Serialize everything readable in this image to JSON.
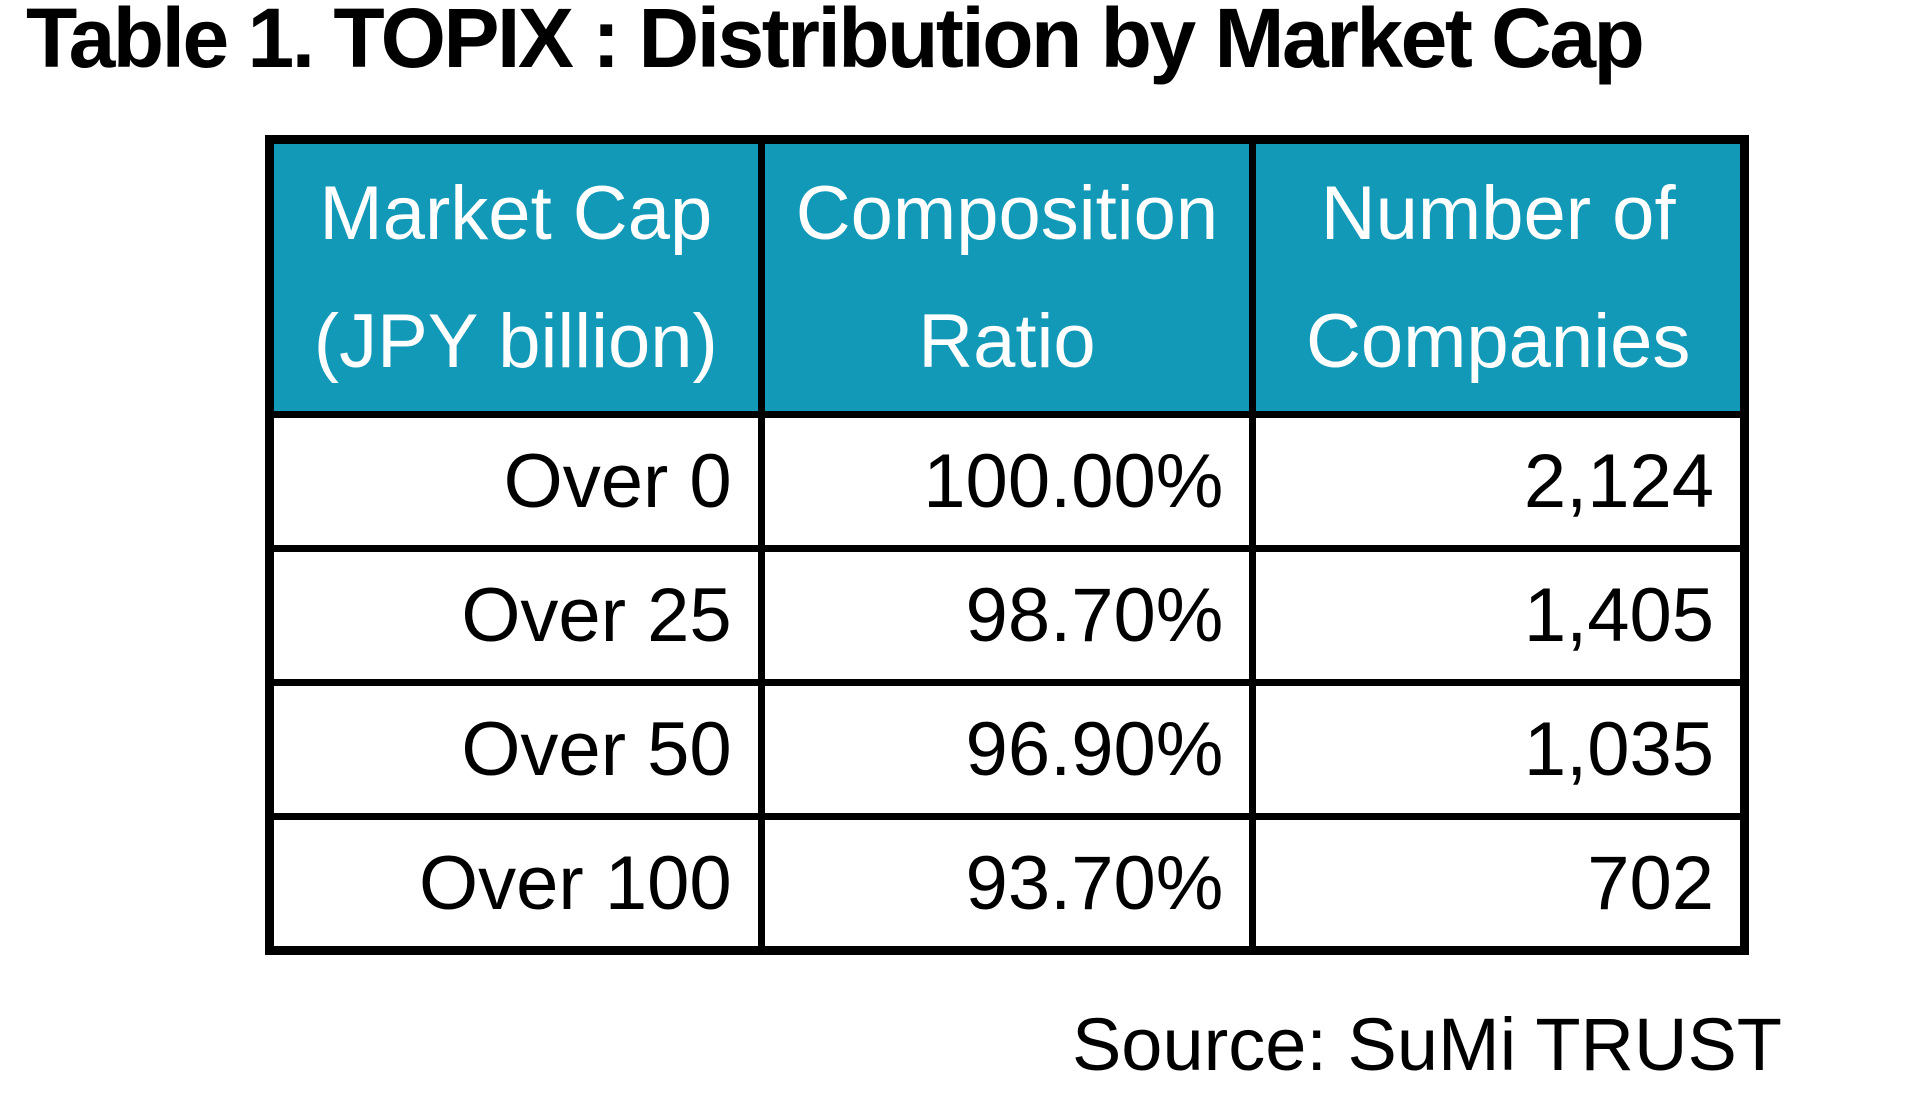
{
  "title": "Table 1. TOPIX : Distribution by Market Cap",
  "colors": {
    "header_bg": "#1299B8",
    "header_text": "#FFFFFF",
    "body_text": "#000000",
    "border": "#000000"
  },
  "table": {
    "columns": [
      {
        "label_line1": "Market Cap",
        "label_line2": "(JPY billion)"
      },
      {
        "label_line1": "Composition",
        "label_line2": "Ratio"
      },
      {
        "label_line1": "Number of",
        "label_line2": "Companies"
      }
    ],
    "rows": [
      {
        "market_cap": "Over 0",
        "composition_ratio": "100.00%",
        "num_companies": "2,124"
      },
      {
        "market_cap": "Over 25",
        "composition_ratio": "98.70%",
        "num_companies": "1,405"
      },
      {
        "market_cap": "Over 50",
        "composition_ratio": "96.90%",
        "num_companies": "1,035"
      },
      {
        "market_cap": "Over 100",
        "composition_ratio": "93.70%",
        "num_companies": "702"
      }
    ]
  },
  "source": "Source: SuMi TRUST",
  "chart_data": {
    "type": "table",
    "title": "Table 1. TOPIX : Distribution by Market Cap",
    "columns": [
      "Market Cap (JPY billion)",
      "Composition Ratio",
      "Number of Companies"
    ],
    "rows": [
      [
        "Over 0",
        "100.00%",
        "2,124"
      ],
      [
        "Over 25",
        "98.70%",
        "1,405"
      ],
      [
        "Over 50",
        "96.90%",
        "1,035"
      ],
      [
        "Over 100",
        "93.70%",
        "702"
      ]
    ],
    "source": "Source: SuMi TRUST"
  }
}
